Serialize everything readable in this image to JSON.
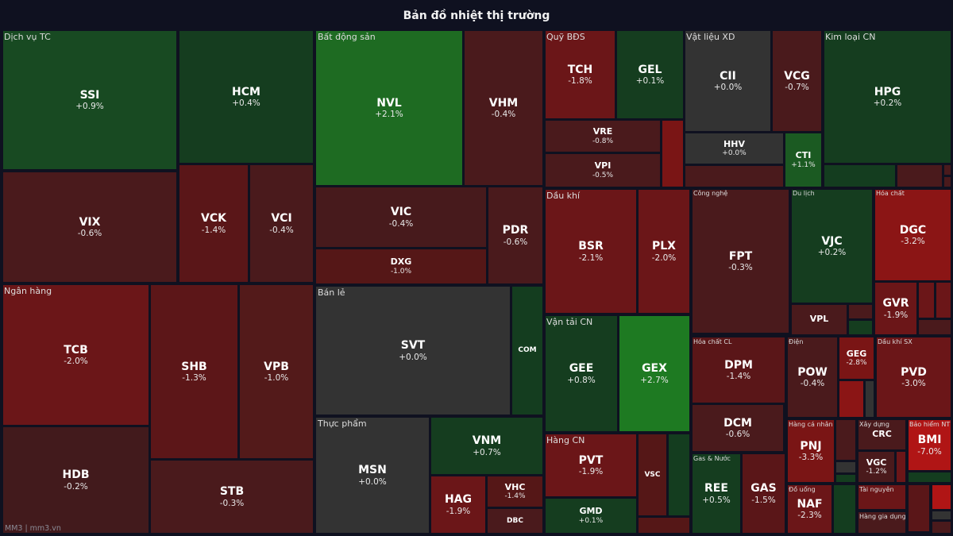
{
  "title": "Bản đồ nhiệt thị trường",
  "footer": "MM3 | mm3.vn",
  "colors": {
    "background": "#0f1120",
    "neutral": "#333333",
    "green_dark": "#153d1f",
    "green": "#1e6b22",
    "green_bright": "#1e7a22",
    "red_dark": "#4a1a1c",
    "red": "#6b1618",
    "red_bright": "#8b1515",
    "red_max": "#b01515"
  },
  "sectors": {
    "dichvutc": "Dịch vụ TC",
    "nganhang": "Ngân hàng",
    "bds": "Bất động sản",
    "banle": "Bán lẻ",
    "thucpham": "Thực phẩm",
    "quybds": "Quỹ BĐS",
    "vlxd": "Vật liệu XD",
    "kimloai": "Kim loại CN",
    "daukhi": "Dầu khí",
    "vantai": "Vận tải CN",
    "hangcn": "Hàng CN",
    "congnghe": "Công nghệ",
    "dulich": "Du lịch",
    "hoachat": "Hóa chất",
    "hoachatcl": "Hóa chất CL",
    "gasnuoc": "Gas & Nước",
    "dien": "Điện",
    "daukhisx": "Dầu khí SX",
    "hangcanhan": "Hàng cá nhân",
    "xaydung": "Xây dựng",
    "baohiem": "Bảo hiểm NT",
    "douong": "Đồ uống",
    "tainguyen": "Tài nguyên",
    "hanggiadung": "Hàng gia dụng"
  },
  "stocks": {
    "SSI": {
      "ticker": "SSI",
      "change": "+0.9%",
      "color": "#184a22"
    },
    "HCM": {
      "ticker": "HCM",
      "change": "+0.4%",
      "color": "#153d1f"
    },
    "VIX": {
      "ticker": "VIX",
      "change": "-0.6%",
      "color": "#4a1a1c"
    },
    "VCK": {
      "ticker": "VCK",
      "change": "-1.4%",
      "color": "#5a1618"
    },
    "VCI": {
      "ticker": "VCI",
      "change": "-0.4%",
      "color": "#4a1a1c"
    },
    "TCB": {
      "ticker": "TCB",
      "change": "-2.0%",
      "color": "#6b1618"
    },
    "HDB": {
      "ticker": "HDB",
      "change": "-0.2%",
      "color": "#421a1c"
    },
    "SHB": {
      "ticker": "SHB",
      "change": "-1.3%",
      "color": "#5c1618"
    },
    "VPB": {
      "ticker": "VPB",
      "change": "-1.0%",
      "color": "#531a1a"
    },
    "STB": {
      "ticker": "STB",
      "change": "-0.3%",
      "color": "#4a1a1c"
    },
    "NVL": {
      "ticker": "NVL",
      "change": "+2.1%",
      "color": "#1e6b22"
    },
    "VHM": {
      "ticker": "VHM",
      "change": "-0.4%",
      "color": "#4a1a1c"
    },
    "VIC": {
      "ticker": "VIC",
      "change": "-0.4%",
      "color": "#471a1c"
    },
    "DXG": {
      "ticker": "DXG",
      "change": "-1.0%",
      "color": "#551717"
    },
    "PDR": {
      "ticker": "PDR",
      "change": "-0.6%",
      "color": "#4a1a1c"
    },
    "SVT": {
      "ticker": "SVT",
      "change": "+0.0%",
      "color": "#333333"
    },
    "COM": {
      "ticker": "COM",
      "color": "#143d1f"
    },
    "MSN": {
      "ticker": "MSN",
      "change": "+0.0%",
      "color": "#333333"
    },
    "VNM": {
      "ticker": "VNM",
      "change": "+0.7%",
      "color": "#153d1f"
    },
    "HAG": {
      "ticker": "HAG",
      "change": "-1.9%",
      "color": "#6b1618"
    },
    "VHC": {
      "ticker": "VHC",
      "change": "-1.4%",
      "color": "#551717"
    },
    "DBC": {
      "ticker": "DBC",
      "color": "#4a1a1c"
    },
    "TCH": {
      "ticker": "TCH",
      "change": "-1.8%",
      "color": "#6b1618"
    },
    "GEL": {
      "ticker": "GEL",
      "change": "+0.1%",
      "color": "#153d1f"
    },
    "VRE": {
      "ticker": "VRE",
      "change": "-0.8%",
      "color": "#4a1a1c"
    },
    "VPI": {
      "ticker": "VPI",
      "change": "-0.5%",
      "color": "#4a1a1c"
    },
    "CII": {
      "ticker": "CII",
      "change": "+0.0%",
      "color": "#333333"
    },
    "VCG": {
      "ticker": "VCG",
      "change": "-0.7%",
      "color": "#4a1a1c"
    },
    "HHV": {
      "ticker": "HHV",
      "change": "+0.0%",
      "color": "#333333"
    },
    "CTI": {
      "ticker": "CTI",
      "change": "+1.1%",
      "color": "#1b5a22"
    },
    "HPG": {
      "ticker": "HPG",
      "change": "+0.2%",
      "color": "#153d1f"
    },
    "BSR": {
      "ticker": "BSR",
      "change": "-2.1%",
      "color": "#6b1618"
    },
    "PLX": {
      "ticker": "PLX",
      "change": "-2.0%",
      "color": "#6b1618"
    },
    "GEE": {
      "ticker": "GEE",
      "change": "+0.8%",
      "color": "#153d1f"
    },
    "GEX": {
      "ticker": "GEX",
      "change": "+2.7%",
      "color": "#1e7a22"
    },
    "PVT": {
      "ticker": "PVT",
      "change": "-1.9%",
      "color": "#6b1618"
    },
    "GMD": {
      "ticker": "GMD",
      "change": "+0.1%",
      "color": "#153d1f"
    },
    "VSC": {
      "ticker": "VSC",
      "color": "#551717"
    },
    "FPT": {
      "ticker": "FPT",
      "change": "-0.3%",
      "color": "#4a1a1c"
    },
    "VJC": {
      "ticker": "VJC",
      "change": "+0.2%",
      "color": "#153d1f"
    },
    "VPL": {
      "ticker": "VPL",
      "color": "#4a1a1c"
    },
    "DGC": {
      "ticker": "DGC",
      "change": "-3.2%",
      "color": "#8b1515"
    },
    "GVR": {
      "ticker": "GVR",
      "change": "-1.9%",
      "color": "#6b1618"
    },
    "DPM": {
      "ticker": "DPM",
      "change": "-1.4%",
      "color": "#5a1618"
    },
    "DCM": {
      "ticker": "DCM",
      "change": "-0.6%",
      "color": "#4a1a1c"
    },
    "REE": {
      "ticker": "REE",
      "change": "+0.5%",
      "color": "#153d1f"
    },
    "GAS": {
      "ticker": "GAS",
      "change": "-1.5%",
      "color": "#5a1618"
    },
    "POW": {
      "ticker": "POW",
      "change": "-0.4%",
      "color": "#4a1a1c"
    },
    "GEG": {
      "ticker": "GEG",
      "change": "-2.8%",
      "color": "#7a1515"
    },
    "PVD": {
      "ticker": "PVD",
      "change": "-3.0%",
      "color": "#6b1618"
    },
    "PNJ": {
      "ticker": "PNJ",
      "change": "-3.3%",
      "color": "#7a1515"
    },
    "CRC": {
      "ticker": "CRC",
      "color": "#4a1a1c"
    },
    "VGC": {
      "ticker": "VGC",
      "change": "-1.2%",
      "color": "#4a1a1c"
    },
    "BMI": {
      "ticker": "BMI",
      "change": "-7.0%",
      "color": "#b01515"
    },
    "NAF": {
      "ticker": "NAF",
      "change": "-2.3%",
      "color": "#6b1618"
    }
  }
}
